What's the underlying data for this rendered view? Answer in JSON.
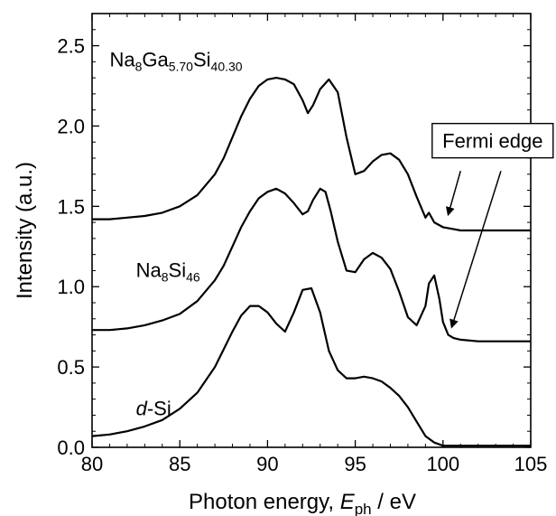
{
  "chart_data": {
    "type": "line",
    "title": "",
    "xlabel_parts": {
      "main": "Photon energy, ",
      "symbol": "E",
      "subscript": "ph",
      "unit": " / eV"
    },
    "ylabel": "Intensity (a.u.)",
    "xlim": [
      80,
      105
    ],
    "ylim": [
      0.0,
      2.7
    ],
    "x_ticks": [
      80,
      85,
      90,
      95,
      100,
      105
    ],
    "y_ticks": [
      0.0,
      0.5,
      1.0,
      1.5,
      2.0,
      2.5
    ],
    "x_tick_labels": [
      "80",
      "85",
      "90",
      "95",
      "100",
      "105"
    ],
    "y_tick_labels": [
      "0.0",
      "0.5",
      "1.0",
      "1.5",
      "2.0",
      "2.5"
    ],
    "grid": false,
    "legend": "none",
    "series": [
      {
        "label_parts": [
          "Na",
          "8",
          "Ga",
          "5.70",
          "Si",
          "40.30"
        ],
        "label_x": 81.0,
        "label_y": 2.37,
        "x": [
          80,
          81,
          82,
          83,
          84,
          85,
          86,
          87,
          87.5,
          88,
          88.5,
          89,
          89.5,
          90,
          90.5,
          91,
          91.5,
          92,
          92.3,
          92.6,
          93,
          93.5,
          94,
          94.5,
          95,
          95.5,
          96,
          96.5,
          97,
          97.5,
          98,
          98.5,
          99,
          99.2,
          99.5,
          100,
          100.5,
          101,
          102,
          103,
          104,
          105
        ],
        "y": [
          1.42,
          1.42,
          1.43,
          1.44,
          1.46,
          1.5,
          1.57,
          1.7,
          1.8,
          1.93,
          2.06,
          2.17,
          2.25,
          2.29,
          2.3,
          2.29,
          2.26,
          2.16,
          2.08,
          2.13,
          2.23,
          2.29,
          2.21,
          1.93,
          1.7,
          1.72,
          1.78,
          1.82,
          1.83,
          1.79,
          1.7,
          1.56,
          1.43,
          1.46,
          1.4,
          1.37,
          1.36,
          1.35,
          1.35,
          1.35,
          1.35,
          1.35
        ]
      },
      {
        "label_parts": [
          "Na",
          "8",
          "Si",
          "46"
        ],
        "label_x": 82.5,
        "label_y": 1.06,
        "x": [
          80,
          81,
          82,
          83,
          84,
          85,
          86,
          87,
          87.5,
          88,
          88.5,
          89,
          89.5,
          90,
          90.5,
          91,
          91.5,
          92,
          92.3,
          92.6,
          93,
          93.3,
          93.6,
          94,
          94.5,
          95,
          95.5,
          96,
          96.5,
          97,
          97.5,
          98,
          98.5,
          99,
          99.2,
          99.5,
          99.8,
          100,
          100.3,
          100.6,
          101,
          102,
          103,
          104,
          105
        ],
        "y": [
          0.73,
          0.73,
          0.74,
          0.76,
          0.79,
          0.83,
          0.91,
          1.04,
          1.13,
          1.25,
          1.37,
          1.47,
          1.55,
          1.59,
          1.61,
          1.58,
          1.52,
          1.45,
          1.47,
          1.54,
          1.61,
          1.59,
          1.47,
          1.28,
          1.1,
          1.09,
          1.17,
          1.21,
          1.18,
          1.11,
          0.97,
          0.81,
          0.76,
          0.88,
          1.02,
          1.07,
          0.92,
          0.78,
          0.7,
          0.68,
          0.67,
          0.66,
          0.66,
          0.66,
          0.66
        ]
      },
      {
        "label_parts": [
          "d",
          "-Si"
        ],
        "label_x": 82.5,
        "label_y": 0.2,
        "x": [
          80,
          81,
          82,
          83,
          84,
          85,
          86,
          87,
          87.5,
          88,
          88.5,
          89,
          89.5,
          90,
          90.5,
          91,
          91.5,
          92,
          92.5,
          93,
          93.5,
          94,
          94.5,
          95,
          95.5,
          96,
          96.5,
          97,
          97.5,
          98,
          98.5,
          99,
          99.5,
          100,
          100.5,
          101,
          102,
          103,
          104,
          105
        ],
        "y": [
          0.07,
          0.08,
          0.1,
          0.13,
          0.17,
          0.24,
          0.34,
          0.5,
          0.61,
          0.72,
          0.82,
          0.88,
          0.88,
          0.84,
          0.77,
          0.72,
          0.84,
          0.98,
          0.99,
          0.84,
          0.6,
          0.48,
          0.43,
          0.43,
          0.44,
          0.43,
          0.41,
          0.37,
          0.32,
          0.25,
          0.16,
          0.07,
          0.03,
          0.01,
          0.01,
          0.01,
          0.01,
          0.01,
          0.01,
          0.01
        ]
      }
    ],
    "annotations": [
      {
        "text": "Fermi edge",
        "box_x": 100.0,
        "box_y": 1.83,
        "arrows": [
          {
            "from_x": 101.0,
            "from_y": 1.72,
            "to_x": 100.3,
            "to_y": 1.45
          },
          {
            "from_x": 103.3,
            "from_y": 1.72,
            "to_x": 100.5,
            "to_y": 0.75
          }
        ]
      }
    ]
  }
}
